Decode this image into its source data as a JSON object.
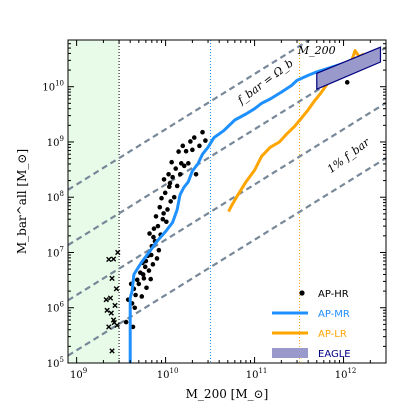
{
  "chart_data": {
    "type": "scatter",
    "xscale": "log",
    "yscale": "log",
    "xlim": [
      800000000,
      3000000000000
    ],
    "ylim": [
      100000,
      70000000000
    ],
    "xlabel": "M_200 [M_⊙]",
    "ylabel": "M_bar^all [M_⊙]",
    "xticks": [
      {
        "value": 1000000000,
        "base": "10",
        "exp": "9"
      },
      {
        "value": 10000000000,
        "base": "10",
        "exp": "10"
      },
      {
        "value": 100000000000,
        "base": "10",
        "exp": "11"
      },
      {
        "value": 1000000000000,
        "base": "10",
        "exp": "12"
      }
    ],
    "yticks": [
      {
        "value": 100000,
        "base": "10",
        "exp": "5"
      },
      {
        "value": 1000000,
        "base": "10",
        "exp": "6"
      },
      {
        "value": 10000000,
        "base": "10",
        "exp": "7"
      },
      {
        "value": 100000000,
        "base": "10",
        "exp": "8"
      },
      {
        "value": 1000000000,
        "base": "10",
        "exp": "9"
      },
      {
        "value": 10000000000,
        "base": "10",
        "exp": "10"
      }
    ],
    "shaded_region": {
      "x": [
        800000000,
        3000000000
      ],
      "color": "#e8fbe8"
    },
    "vlines": [
      {
        "x": 3000000000,
        "color": "#000000",
        "style": "dotted"
      },
      {
        "x": 32000000000,
        "color": "#1e90ff",
        "style": "dotted"
      },
      {
        "x": 320000000000,
        "color": "#ffa500",
        "style": "dotted"
      }
    ],
    "reference_lines": [
      {
        "name": "f_bar = Ω_b",
        "fraction": 0.17,
        "color": "#778899"
      },
      {
        "name": "1% f_bar",
        "fraction": 0.0017,
        "color": "#778899"
      },
      {
        "name": "",
        "fraction": 0.017,
        "color": "#778899"
      },
      {
        "name": "",
        "fraction": 0.00017,
        "color": "#778899"
      }
    ],
    "annotations": [
      {
        "text": "f_bar = Ω_b",
        "x": 140000000000.0,
        "y": 11000000000.0,
        "rotation": -37
      },
      {
        "text": "M_200",
        "x": 500000000000.0,
        "y": 39000000000.0,
        "rotation": 0
      },
      {
        "text": "1% f_bar",
        "x": 1200000000000.0,
        "y": 500000000.0,
        "rotation": -37
      }
    ],
    "series": [
      {
        "name": "AP-HR",
        "kind": "points",
        "marker": "circle",
        "color": "#000000",
        "points": [
          [
            4200000000.0,
            1200000.0
          ],
          [
            4400000000.0,
            2200000.0
          ],
          [
            4600000000.0,
            1700000.0
          ],
          [
            4800000000.0,
            3200000.0
          ],
          [
            5000000000.0,
            2700000.0
          ],
          [
            5200000000.0,
            4300000.0
          ],
          [
            5400000000.0,
            1600000.0
          ],
          [
            5500000000.0,
            6500000.0
          ],
          [
            5700000000.0,
            3400000.0
          ],
          [
            5900000000.0,
            5500000.0
          ],
          [
            6100000000.0,
            2300000.0
          ],
          [
            6300000000.0,
            8700000.0
          ],
          [
            6500000000.0,
            4700000.0
          ],
          [
            6600000000.0,
            22000000.0
          ],
          [
            6800000000.0,
            3300000.0
          ],
          [
            7000000000.0,
            13000000.0
          ],
          [
            7200000000.0,
            6100000.0
          ],
          [
            7400000000.0,
            27000000.0
          ],
          [
            7600000000.0,
            16000000.0
          ],
          [
            7800000000.0,
            45000000.0
          ],
          [
            8000000000.0,
            7800000.0
          ],
          [
            8200000000.0,
            30000000.0
          ],
          [
            8400000000.0,
            11000000.0
          ],
          [
            8600000000.0,
            66000000.0
          ],
          [
            8800000000.0,
            21000000.0
          ],
          [
            9000000000.0,
            96000000.0
          ],
          [
            9300000000.0,
            40000000.0
          ],
          [
            9600000000.0,
            210000000.0
          ],
          [
            9900000000.0,
            120000000.0
          ],
          [
            10200000000.0,
            36000000.0
          ],
          [
            10500000000.0,
            60000000.0
          ],
          [
            10800000000.0,
            260000000.0
          ],
          [
            11000000000.0,
            155000000.0
          ],
          [
            11400000000.0,
            84000000.0
          ],
          [
            11700000000.0,
            430000000.0
          ],
          [
            12000000000.0,
            230000000.0
          ],
          [
            12500000000.0,
            100000000.0
          ],
          [
            13000000000.0,
            330000000.0
          ],
          [
            13500000000.0,
            160000000.0
          ],
          [
            14000000000.0,
            670000000.0
          ],
          [
            14600000000.0,
            260000000.0
          ],
          [
            15000000000.0,
            410000000.0
          ],
          [
            15600000000.0,
            850000000.0
          ],
          [
            16200000000.0,
            370000000.0
          ],
          [
            17000000000.0,
            680000000.0
          ],
          [
            18000000000.0,
            410000000.0
          ],
          [
            19000000000.0,
            1020000000.0
          ],
          [
            20000000000.0,
            720000000.0
          ],
          [
            21000000000.0,
            1200000000.0
          ],
          [
            22000000000.0,
            260000000.0
          ],
          [
            24000000000.0,
            850000000.0
          ],
          [
            26000000000.0,
            1500000000.0
          ],
          [
            28000000000.0,
            1060000000.0
          ],
          [
            5600000000.0,
            4000000.0
          ],
          [
            6000000000.0,
            7000000.0
          ],
          [
            4500000000.0,
            1000000.0
          ],
          [
            6900000000.0,
            9000000.0
          ],
          [
            7300000000.0,
            19000000.0
          ],
          [
            9500000000.0,
            51000000.0
          ],
          [
            11200000000.0,
            180000000.0
          ],
          [
            4100000000.0,
            2700000.0
          ],
          [
            4300000000.0,
            450000.0
          ],
          [
            3800000000.0,
            1400000.0
          ],
          [
            3600000000.0,
            550000.0
          ],
          [
            1000000000000.0,
            19000000000.0
          ],
          [
            1500000000000.0,
            30000000000.0
          ],
          [
            1100000000000.0,
            12000000000.0
          ]
        ]
      },
      {
        "name": "AP-HR",
        "kind": "points",
        "marker": "x",
        "color": "#000000",
        "legend": false,
        "points": [
          [
            2500000000.0,
            165000.0
          ],
          [
            2300000000.0,
            450000.0
          ],
          [
            2600000000.0,
            600000.0
          ],
          [
            2200000000.0,
            900000.0
          ],
          [
            2700000000.0,
            1100000.0
          ],
          [
            2400000000.0,
            1500000.0
          ],
          [
            2800000000.0,
            2200000.0
          ],
          [
            2500000000.0,
            3400000.0
          ],
          [
            2300000000.0,
            7500000.0
          ],
          [
            2600000000.0,
            7600000.0
          ],
          [
            2900000000.0,
            10000000.0
          ],
          [
            2450000000.0,
            800000.0
          ],
          [
            2650000000.0,
            540000.0
          ],
          [
            2150000000.0,
            1400000.0
          ],
          [
            2850000000.0,
            480000.0
          ]
        ]
      },
      {
        "name": "AP-MR",
        "kind": "line",
        "color": "#1e90ff",
        "points": [
          [
            4000000000.0,
            100000.0
          ],
          [
            4000000000.0,
            1500000.0
          ],
          [
            4200000000.0,
            2000000.0
          ],
          [
            4400000000.0,
            4000000.0
          ],
          [
            4800000000.0,
            5000000.0
          ],
          [
            5500000000.0,
            7000000.0
          ],
          [
            6500000000.0,
            10000000.0
          ],
          [
            8000000000.0,
            16000000.0
          ],
          [
            10000000000.0,
            24000000.0
          ],
          [
            12000000000.0,
            35000000.0
          ],
          [
            13500000000.0,
            60000000.0
          ],
          [
            14500000000.0,
            110000000.0
          ],
          [
            16000000000.0,
            150000000.0
          ],
          [
            18000000000.0,
            190000000.0
          ],
          [
            20000000000.0,
            300000000.0
          ],
          [
            23000000000.0,
            400000000.0
          ],
          [
            26000000000.0,
            600000000.0
          ],
          [
            30000000000.0,
            800000000.0
          ],
          [
            35000000000.0,
            1200000000.0
          ],
          [
            45000000000.0,
            1600000000.0
          ],
          [
            60000000000.0,
            2500000000.0
          ],
          [
            80000000000.0,
            3200000000.0
          ],
          [
            100000000000.0,
            4000000000.0
          ],
          [
            120000000000.0,
            5000000000.0
          ],
          [
            150000000000.0,
            6000000000.0
          ],
          [
            200000000000.0,
            8000000000.0
          ],
          [
            260000000000.0,
            10500000000.0
          ],
          [
            300000000000.0,
            13000000000.0
          ],
          [
            400000000000.0,
            16000000000.0
          ],
          [
            500000000000.0,
            18500000000.0
          ],
          [
            700000000000.0,
            22000000000.0
          ],
          [
            900000000000.0,
            25000000000.0
          ],
          [
            1200000000000.0,
            29000000000.0
          ]
        ]
      },
      {
        "name": "AP-LR",
        "kind": "line",
        "color": "#ffa500",
        "points": [
          [
            51000000000.0,
            55000000.0
          ],
          [
            55000000000.0,
            70000000.0
          ],
          [
            65000000000.0,
            110000000.0
          ],
          [
            80000000000.0,
            190000000.0
          ],
          [
            100000000000.0,
            310000000.0
          ],
          [
            120000000000.0,
            550000000.0
          ],
          [
            150000000000.0,
            800000000.0
          ],
          [
            190000000000.0,
            1000000000.0
          ],
          [
            230000000000.0,
            1400000000.0
          ],
          [
            280000000000.0,
            1900000000.0
          ],
          [
            330000000000.0,
            2600000000.0
          ],
          [
            400000000000.0,
            3800000000.0
          ],
          [
            470000000000.0,
            5500000000.0
          ],
          [
            550000000000.0,
            7500000000.0
          ],
          [
            700000000000.0,
            13000000000.0
          ],
          [
            850000000000.0,
            19000000000.0
          ],
          [
            1000000000000.0,
            23000000000.0
          ],
          [
            1200000000000.0,
            26000000000.0
          ],
          [
            1350000000000.0,
            45000000000.0
          ],
          [
            1500000000000.0,
            35000000000.0
          ],
          [
            1700000000000.0,
            39000000000.0
          ]
        ]
      },
      {
        "name": "EAGLE",
        "kind": "band",
        "color": "#9999cc",
        "edge": "#000080",
        "upper": [
          [
            500000000000.0,
            17500000000.0
          ],
          [
            2600000000000.0,
            52000000000.0
          ]
        ],
        "lower": [
          [
            500000000000.0,
            9000000000.0
          ],
          [
            2600000000000.0,
            28000000000.0
          ]
        ]
      }
    ],
    "legend": {
      "placement": "lower-right",
      "entries": [
        {
          "label": "AP-HR",
          "color": "#000000",
          "text_color": "#000000",
          "kind": "marker"
        },
        {
          "label": "AP-MR",
          "color": "#1e90ff",
          "text_color": "#1e90ff",
          "kind": "line"
        },
        {
          "label": "AP-LR",
          "color": "#ffa500",
          "text_color": "#ffa500",
          "kind": "line"
        },
        {
          "label": "EAGLE",
          "color": "#9999cc",
          "text_color": "#000080",
          "kind": "patch"
        }
      ]
    }
  }
}
